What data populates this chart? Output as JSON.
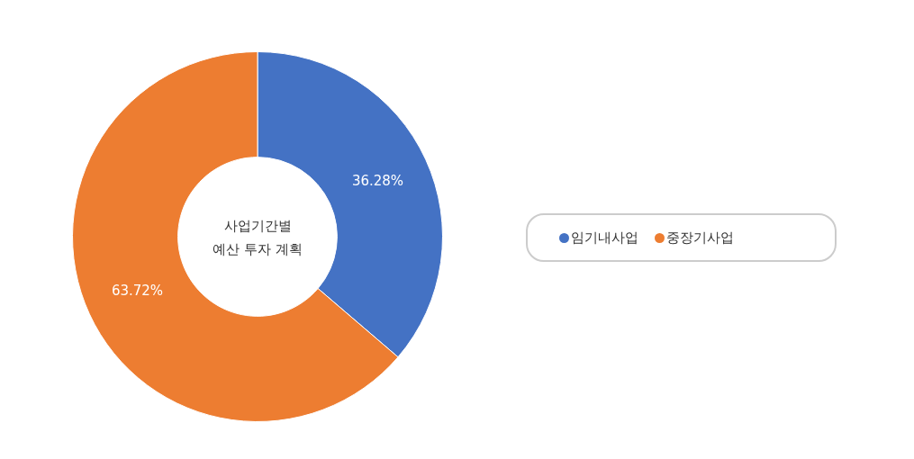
{
  "chart_data": {
    "type": "donut",
    "title": "사업기간별\n예산 투자 계획",
    "categories": [
      "임기내사업",
      "중장기사업"
    ],
    "values": [
      36.28,
      63.72
    ],
    "colors": [
      "#4472c4",
      "#ed7d31"
    ],
    "value_labels": [
      "36.28%",
      "63.72%"
    ],
    "legend": "right"
  }
}
